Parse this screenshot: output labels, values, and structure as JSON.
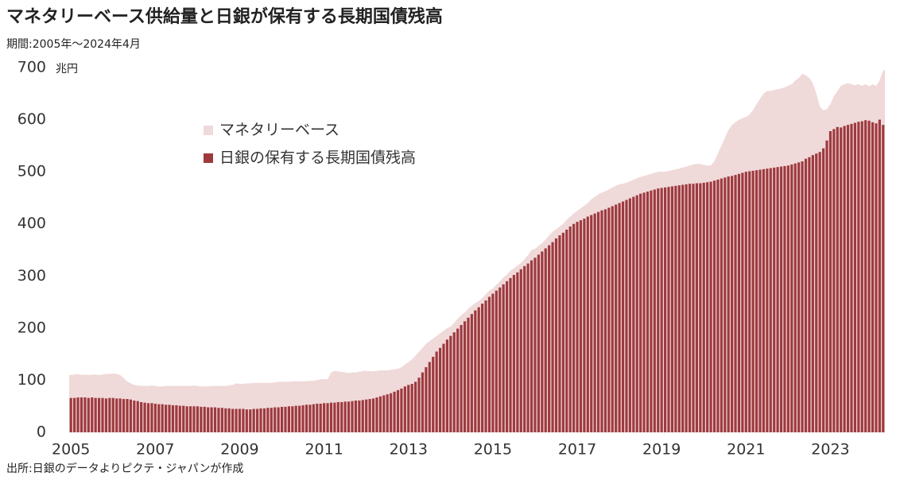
{
  "chart_data": {
    "type": "bar_area",
    "title": "マネタリーベース供給量と日銀が保有する長期国債残高",
    "subtitle": "期間:2005年～2024年4月",
    "y_unit": "兆円",
    "source": "出所:日銀のデータよりピクテ・ジャパンが作成",
    "categories": [
      "2005",
      null,
      null,
      null,
      null,
      null,
      null,
      null,
      null,
      null,
      null,
      null,
      null,
      null,
      null,
      null,
      null,
      null,
      null,
      null,
      null,
      null,
      null,
      null,
      "2007",
      null,
      null,
      null,
      null,
      null,
      null,
      null,
      null,
      null,
      null,
      null,
      null,
      null,
      null,
      null,
      null,
      null,
      null,
      null,
      null,
      null,
      null,
      null,
      "2009",
      null,
      null,
      null,
      null,
      null,
      null,
      null,
      null,
      null,
      null,
      null,
      null,
      null,
      null,
      null,
      null,
      null,
      null,
      null,
      null,
      null,
      null,
      null,
      "2011",
      null,
      null,
      null,
      null,
      null,
      null,
      null,
      null,
      null,
      null,
      null,
      null,
      null,
      null,
      null,
      null,
      null,
      null,
      null,
      null,
      null,
      null,
      null,
      "2013",
      null,
      null,
      null,
      null,
      null,
      null,
      null,
      null,
      null,
      null,
      null,
      null,
      null,
      null,
      null,
      null,
      null,
      null,
      null,
      null,
      null,
      null,
      null,
      "2015",
      null,
      null,
      null,
      null,
      null,
      null,
      null,
      null,
      null,
      null,
      null,
      null,
      null,
      null,
      null,
      null,
      null,
      null,
      null,
      null,
      null,
      null,
      null,
      "2017",
      null,
      null,
      null,
      null,
      null,
      null,
      null,
      null,
      null,
      null,
      null,
      null,
      null,
      null,
      null,
      null,
      null,
      null,
      null,
      null,
      null,
      null,
      null,
      "2019",
      null,
      null,
      null,
      null,
      null,
      null,
      null,
      null,
      null,
      null,
      null,
      null,
      null,
      null,
      null,
      null,
      null,
      null,
      null,
      null,
      null,
      null,
      null,
      "2021",
      null,
      null,
      null,
      null,
      null,
      null,
      null,
      null,
      null,
      null,
      null,
      null,
      null,
      null,
      null,
      null,
      null,
      null,
      null,
      null,
      null,
      null,
      null,
      "2023",
      null,
      null,
      null,
      null,
      null,
      null,
      null,
      null,
      null,
      null,
      null,
      null,
      null,
      null,
      null
    ],
    "series": [
      {
        "name": "マネタリーベース",
        "color": "#f0d9d9",
        "kind": "area",
        "values": [
          110,
          111,
          112,
          110,
          111,
          110,
          111,
          111,
          110,
          111,
          112,
          112,
          113,
          112,
          110,
          104,
          98,
          94,
          91,
          90,
          89,
          89,
          89,
          90,
          89,
          88,
          88,
          89,
          89,
          89,
          89,
          89,
          89,
          89,
          89,
          90,
          89,
          88,
          88,
          88,
          89,
          89,
          89,
          89,
          89,
          90,
          91,
          94,
          93,
          93,
          94,
          94,
          95,
          95,
          95,
          95,
          95,
          95,
          96,
          97,
          97,
          97,
          97,
          98,
          98,
          98,
          98,
          98,
          99,
          99,
          100,
          102,
          102,
          102,
          115,
          118,
          117,
          116,
          115,
          114,
          115,
          115,
          116,
          118,
          118,
          117,
          117,
          118,
          119,
          119,
          119,
          120,
          121,
          122,
          125,
          130,
          135,
          140,
          147,
          155,
          162,
          170,
          175,
          180,
          185,
          190,
          195,
          200,
          203,
          210,
          218,
          225,
          230,
          237,
          243,
          248,
          252,
          258,
          265,
          272,
          276,
          283,
          290,
          297,
          303,
          310,
          315,
          320,
          325,
          332,
          340,
          350,
          352,
          358,
          363,
          370,
          378,
          385,
          390,
          395,
          400,
          408,
          414,
          420,
          425,
          430,
          435,
          440,
          447,
          452,
          457,
          460,
          463,
          466,
          470,
          473,
          476,
          477,
          479,
          482,
          485,
          488,
          490,
          492,
          494,
          496,
          498,
          500,
          500,
          500,
          502,
          503,
          505,
          506,
          508,
          510,
          512,
          514,
          515,
          515,
          513,
          512,
          512,
          520,
          535,
          550,
          565,
          580,
          590,
          595,
          600,
          603,
          605,
          610,
          618,
          630,
          640,
          650,
          655,
          655,
          657,
          658,
          660,
          662,
          665,
          668,
          675,
          680,
          688,
          685,
          680,
          670,
          650,
          625,
          618,
          620,
          630,
          645,
          655,
          665,
          668,
          670,
          668,
          666,
          668,
          665,
          668,
          664,
          668,
          665,
          675,
          695
        ]
      },
      {
        "name": "日銀の保有する長期国債残高",
        "color": "#9e3a3f",
        "kind": "bar",
        "values": [
          66,
          66,
          67,
          67,
          67,
          66,
          67,
          66,
          66,
          66,
          65,
          66,
          66,
          65,
          65,
          64,
          64,
          63,
          61,
          60,
          58,
          57,
          56,
          56,
          55,
          54,
          54,
          53,
          53,
          52,
          52,
          51,
          51,
          50,
          50,
          50,
          50,
          49,
          49,
          48,
          48,
          48,
          47,
          47,
          46,
          46,
          45,
          45,
          45,
          45,
          44,
          44,
          45,
          45,
          46,
          46,
          47,
          47,
          48,
          48,
          49,
          49,
          50,
          50,
          51,
          51,
          52,
          53,
          53,
          54,
          55,
          55,
          56,
          56,
          57,
          57,
          58,
          58,
          59,
          59,
          60,
          61,
          61,
          62,
          63,
          64,
          65,
          67,
          69,
          71,
          73,
          75,
          78,
          81,
          84,
          88,
          91,
          93,
          97,
          105,
          115,
          125,
          135,
          145,
          155,
          162,
          170,
          178,
          185,
          192,
          199,
          206,
          213,
          220,
          227,
          234,
          240,
          247,
          253,
          260,
          266,
          272,
          278,
          284,
          290,
          296,
          302,
          307,
          313,
          319,
          324,
          330,
          335,
          341,
          347,
          353,
          359,
          365,
          372,
          378,
          383,
          389,
          395,
          400,
          404,
          407,
          410,
          414,
          417,
          420,
          423,
          426,
          428,
          431,
          434,
          437,
          440,
          443,
          446,
          449,
          452,
          455,
          458,
          460,
          462,
          464,
          466,
          468,
          469,
          470,
          471,
          472,
          473,
          474,
          475,
          476,
          477,
          477,
          478,
          478,
          479,
          480,
          481,
          483,
          485,
          487,
          489,
          491,
          492,
          494,
          496,
          498,
          500,
          501,
          502,
          503,
          504,
          505,
          506,
          507,
          508,
          509,
          510,
          511,
          512,
          514,
          516,
          518,
          520,
          525,
          528,
          532,
          535,
          538,
          545,
          560,
          578,
          582,
          586,
          585,
          588,
          590,
          592,
          594,
          596,
          597,
          599,
          598,
          595,
          593,
          600,
          590
        ]
      }
    ],
    "ylim": [
      0,
      700
    ],
    "yticks": [
      0,
      100,
      200,
      300,
      400,
      500,
      600,
      700
    ],
    "legend": "upper-left"
  }
}
